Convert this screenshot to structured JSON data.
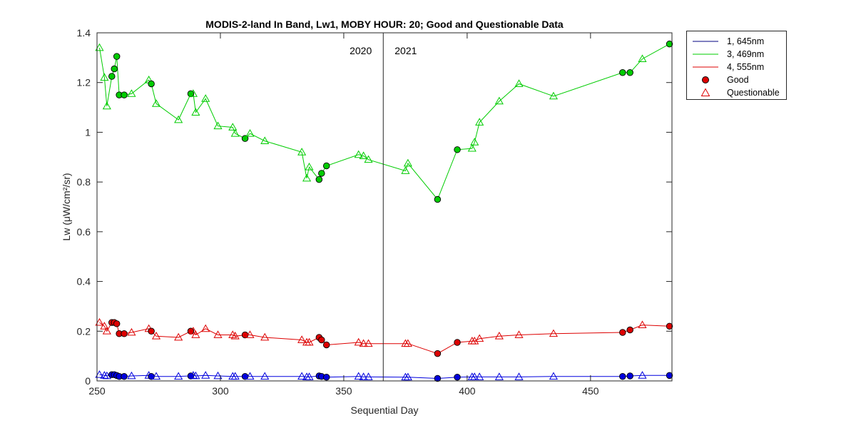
{
  "chart_data": {
    "type": "line",
    "title": "MODIS-2-land In Band,  Lw1, MOBY HOUR: 20;  Good and Questionable Data",
    "xlabel": "Sequential Day",
    "ylabel": "Lw (μW/cm²/sr)",
    "xlim": [
      250,
      483
    ],
    "ylim": [
      0,
      1.4
    ],
    "xticks": [
      250,
      300,
      350,
      400,
      450
    ],
    "xtick_labels": [
      "250",
      "300",
      "350",
      "400",
      "450"
    ],
    "yticks": [
      0,
      0.2,
      0.4,
      0.6,
      0.8,
      1,
      1.2,
      1.4
    ],
    "ytick_labels": [
      "0",
      "0.2",
      "0.4",
      "0.6",
      "0.8",
      "1",
      "1.2",
      "1.4"
    ],
    "grid": false,
    "legend_position": "outside-top-right",
    "year_divider": {
      "x": 366,
      "left_label": "2020",
      "right_label": "2021"
    },
    "legend": [
      {
        "label": "1, 645nm",
        "kind": "line",
        "color": "#000080"
      },
      {
        "label": "3, 469nm",
        "kind": "line",
        "color": "#00cc00"
      },
      {
        "label": "4, 555nm",
        "kind": "line",
        "color": "#dd0000"
      },
      {
        "label": "Good",
        "kind": "circle",
        "color": "#dd0000"
      },
      {
        "label": "Questionable",
        "kind": "triangle",
        "color": "#dd0000"
      }
    ],
    "x": [
      251,
      253,
      254,
      256,
      257,
      258,
      259,
      261,
      264,
      271,
      272,
      274,
      283,
      288,
      289,
      290,
      294,
      299,
      305,
      306,
      310,
      312,
      318,
      333,
      335,
      336,
      340,
      341,
      343,
      356,
      358,
      360,
      375,
      376,
      388,
      396,
      402,
      403,
      405,
      413,
      421,
      435,
      463,
      466,
      471,
      482
    ],
    "q": [
      "Q",
      "Q",
      "Q",
      "G",
      "G",
      "G",
      "G",
      "G",
      "Q",
      "Q",
      "G",
      "Q",
      "Q",
      "G",
      "Q",
      "Q",
      "Q",
      "Q",
      "Q",
      "Q",
      "G",
      "Q",
      "Q",
      "Q",
      "Q",
      "Q",
      "G",
      "G",
      "G",
      "Q",
      "Q",
      "Q",
      "Q",
      "Q",
      "G",
      "G",
      "Q",
      "Q",
      "Q",
      "Q",
      "Q",
      "Q",
      "G",
      "G",
      "Q",
      "G"
    ],
    "series": [
      {
        "name": "3, 469nm",
        "line_color": "#00cc00",
        "marker_fill": "#00cc00",
        "values": [
          1.34,
          1.22,
          1.105,
          1.225,
          1.255,
          1.305,
          1.15,
          1.15,
          1.155,
          1.21,
          1.195,
          1.115,
          1.05,
          1.155,
          1.155,
          1.08,
          1.135,
          1.025,
          1.02,
          0.995,
          0.975,
          0.995,
          0.965,
          0.92,
          0.815,
          0.86,
          0.81,
          0.835,
          0.865,
          0.91,
          0.905,
          0.89,
          0.845,
          0.875,
          0.73,
          0.93,
          0.935,
          0.96,
          1.04,
          1.125,
          1.195,
          1.145,
          1.24,
          1.24,
          1.295,
          1.355
        ]
      },
      {
        "name": "4, 555nm",
        "line_color": "#dd0000",
        "marker_fill": "#dd0000",
        "values": [
          0.235,
          0.22,
          0.2,
          0.235,
          0.235,
          0.23,
          0.19,
          0.19,
          0.195,
          0.21,
          0.2,
          0.18,
          0.175,
          0.2,
          0.2,
          0.185,
          0.21,
          0.185,
          0.185,
          0.18,
          0.185,
          0.185,
          0.175,
          0.165,
          0.155,
          0.155,
          0.175,
          0.165,
          0.145,
          0.155,
          0.15,
          0.15,
          0.15,
          0.15,
          0.11,
          0.155,
          0.16,
          0.16,
          0.17,
          0.18,
          0.185,
          0.19,
          0.195,
          0.205,
          0.225,
          0.22
        ]
      },
      {
        "name": "1, 645nm",
        "line_color": "#0000dd",
        "marker_fill": "#0000dd",
        "values": [
          0.025,
          0.022,
          0.02,
          0.025,
          0.025,
          0.022,
          0.018,
          0.018,
          0.02,
          0.022,
          0.018,
          0.018,
          0.018,
          0.02,
          0.022,
          0.02,
          0.022,
          0.02,
          0.018,
          0.018,
          0.018,
          0.018,
          0.018,
          0.018,
          0.016,
          0.016,
          0.02,
          0.018,
          0.015,
          0.018,
          0.016,
          0.016,
          0.015,
          0.015,
          0.01,
          0.015,
          0.016,
          0.016,
          0.016,
          0.016,
          0.016,
          0.018,
          0.018,
          0.02,
          0.022,
          0.022
        ]
      }
    ]
  }
}
